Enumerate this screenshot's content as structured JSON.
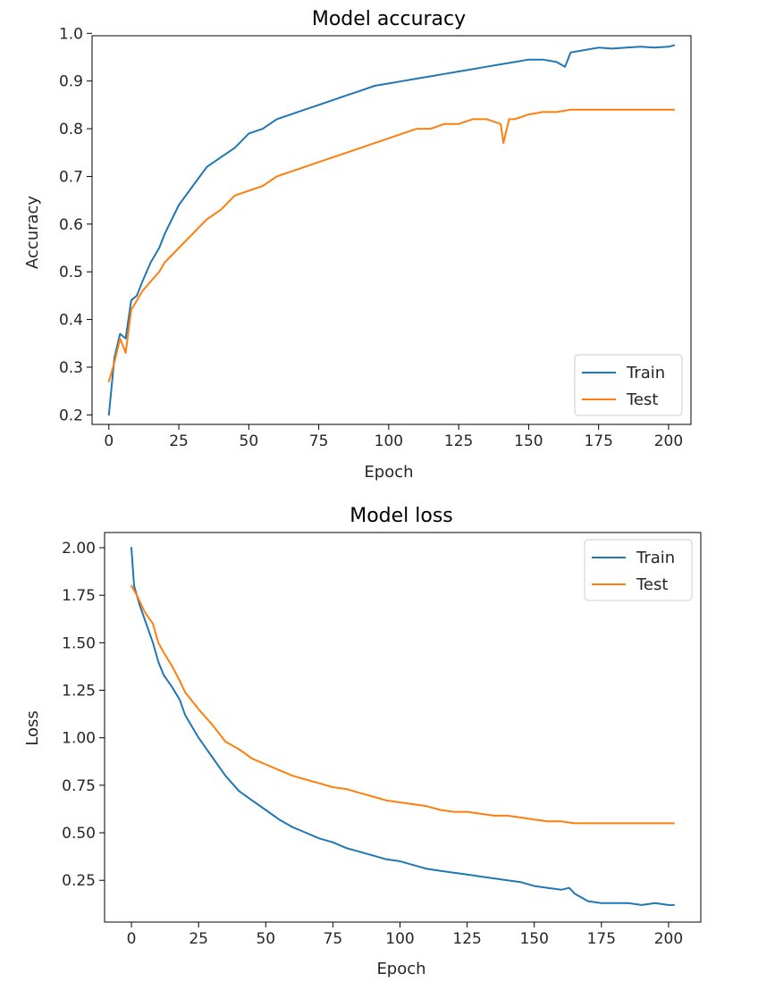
{
  "chart_data": [
    {
      "type": "line",
      "title": "Model accuracy",
      "xlabel": "Epoch",
      "ylabel": "Accuracy",
      "xlim": [
        -6,
        208
      ],
      "ylim": [
        0.18,
        0.995
      ],
      "xticks": [
        0,
        25,
        50,
        75,
        100,
        125,
        150,
        175,
        200
      ],
      "xtick_labels": [
        "0",
        "25",
        "50",
        "75",
        "100",
        "125",
        "150",
        "175",
        "200"
      ],
      "yticks": [
        0.2,
        0.3,
        0.4,
        0.5,
        0.6,
        0.7,
        0.8,
        0.9,
        1.0
      ],
      "ytick_labels": [
        "0.2",
        "0.3",
        "0.4",
        "0.5",
        "0.6",
        "0.7",
        "0.8",
        "0.9",
        "1.0"
      ],
      "legend_position": "lower-right",
      "series": [
        {
          "name": "Train",
          "color": "#1f77b4",
          "x": [
            0,
            2,
            4,
            6,
            8,
            10,
            12,
            15,
            18,
            20,
            25,
            30,
            35,
            40,
            45,
            50,
            55,
            60,
            65,
            70,
            75,
            80,
            85,
            90,
            95,
            100,
            105,
            110,
            115,
            120,
            125,
            130,
            135,
            140,
            145,
            150,
            155,
            160,
            163,
            165,
            170,
            175,
            180,
            185,
            190,
            195,
            200,
            202
          ],
          "y": [
            0.2,
            0.32,
            0.37,
            0.36,
            0.44,
            0.45,
            0.48,
            0.52,
            0.55,
            0.58,
            0.64,
            0.68,
            0.72,
            0.74,
            0.76,
            0.79,
            0.8,
            0.82,
            0.83,
            0.84,
            0.85,
            0.86,
            0.87,
            0.88,
            0.89,
            0.895,
            0.9,
            0.905,
            0.91,
            0.915,
            0.92,
            0.925,
            0.93,
            0.935,
            0.94,
            0.945,
            0.945,
            0.94,
            0.93,
            0.96,
            0.965,
            0.97,
            0.968,
            0.97,
            0.972,
            0.97,
            0.972,
            0.975
          ]
        },
        {
          "name": "Test",
          "color": "#ff7f0e",
          "x": [
            0,
            2,
            4,
            6,
            8,
            10,
            12,
            15,
            18,
            20,
            25,
            30,
            35,
            40,
            45,
            50,
            55,
            60,
            65,
            70,
            75,
            80,
            85,
            90,
            95,
            100,
            105,
            110,
            115,
            120,
            125,
            130,
            135,
            140,
            141,
            143,
            145,
            150,
            155,
            160,
            165,
            170,
            175,
            180,
            185,
            190,
            195,
            200,
            202
          ],
          "y": [
            0.27,
            0.31,
            0.36,
            0.33,
            0.42,
            0.44,
            0.46,
            0.48,
            0.5,
            0.52,
            0.55,
            0.58,
            0.61,
            0.63,
            0.66,
            0.67,
            0.68,
            0.7,
            0.71,
            0.72,
            0.73,
            0.74,
            0.75,
            0.76,
            0.77,
            0.78,
            0.79,
            0.8,
            0.8,
            0.81,
            0.81,
            0.82,
            0.82,
            0.81,
            0.77,
            0.82,
            0.82,
            0.83,
            0.835,
            0.835,
            0.84,
            0.84,
            0.84,
            0.84,
            0.84,
            0.84,
            0.84,
            0.84,
            0.84
          ]
        }
      ]
    },
    {
      "type": "line",
      "title": "Model loss",
      "xlabel": "Epoch",
      "ylabel": "Loss",
      "xlim": [
        -10,
        212
      ],
      "ylim": [
        0.03,
        2.08
      ],
      "xticks": [
        0,
        25,
        50,
        75,
        100,
        125,
        150,
        175,
        200
      ],
      "xtick_labels": [
        "0",
        "25",
        "50",
        "75",
        "100",
        "125",
        "150",
        "175",
        "200"
      ],
      "yticks": [
        0.25,
        0.5,
        0.75,
        1.0,
        1.25,
        1.5,
        1.75,
        2.0
      ],
      "ytick_labels": [
        "0.25",
        "0.50",
        "0.75",
        "1.00",
        "1.25",
        "1.50",
        "1.75",
        "2.00"
      ],
      "legend_position": "upper-right",
      "series": [
        {
          "name": "Train",
          "color": "#1f77b4",
          "x": [
            0,
            1,
            3,
            5,
            8,
            10,
            12,
            15,
            18,
            20,
            25,
            30,
            35,
            40,
            45,
            50,
            55,
            60,
            65,
            70,
            75,
            80,
            85,
            90,
            95,
            100,
            105,
            110,
            115,
            120,
            125,
            130,
            135,
            140,
            145,
            150,
            155,
            160,
            163,
            165,
            170,
            175,
            180,
            185,
            190,
            195,
            200,
            202
          ],
          "y": [
            2.0,
            1.8,
            1.7,
            1.62,
            1.5,
            1.4,
            1.33,
            1.27,
            1.2,
            1.12,
            1.0,
            0.9,
            0.8,
            0.72,
            0.67,
            0.62,
            0.57,
            0.53,
            0.5,
            0.47,
            0.45,
            0.42,
            0.4,
            0.38,
            0.36,
            0.35,
            0.33,
            0.31,
            0.3,
            0.29,
            0.28,
            0.27,
            0.26,
            0.25,
            0.24,
            0.22,
            0.21,
            0.2,
            0.21,
            0.18,
            0.14,
            0.13,
            0.13,
            0.13,
            0.12,
            0.13,
            0.12,
            0.12
          ]
        },
        {
          "name": "Test",
          "color": "#ff7f0e",
          "x": [
            0,
            2,
            5,
            8,
            10,
            12,
            15,
            18,
            20,
            25,
            30,
            35,
            40,
            45,
            50,
            55,
            60,
            65,
            70,
            75,
            80,
            85,
            90,
            95,
            100,
            105,
            110,
            115,
            120,
            125,
            130,
            135,
            140,
            145,
            150,
            155,
            160,
            165,
            170,
            175,
            180,
            185,
            190,
            195,
            200,
            202
          ],
          "y": [
            1.8,
            1.75,
            1.66,
            1.6,
            1.5,
            1.45,
            1.38,
            1.3,
            1.24,
            1.15,
            1.07,
            0.98,
            0.94,
            0.89,
            0.86,
            0.83,
            0.8,
            0.78,
            0.76,
            0.74,
            0.73,
            0.71,
            0.69,
            0.67,
            0.66,
            0.65,
            0.64,
            0.62,
            0.61,
            0.61,
            0.6,
            0.59,
            0.59,
            0.58,
            0.57,
            0.56,
            0.56,
            0.55,
            0.55,
            0.55,
            0.55,
            0.55,
            0.55,
            0.55,
            0.55,
            0.55
          ]
        }
      ]
    }
  ]
}
